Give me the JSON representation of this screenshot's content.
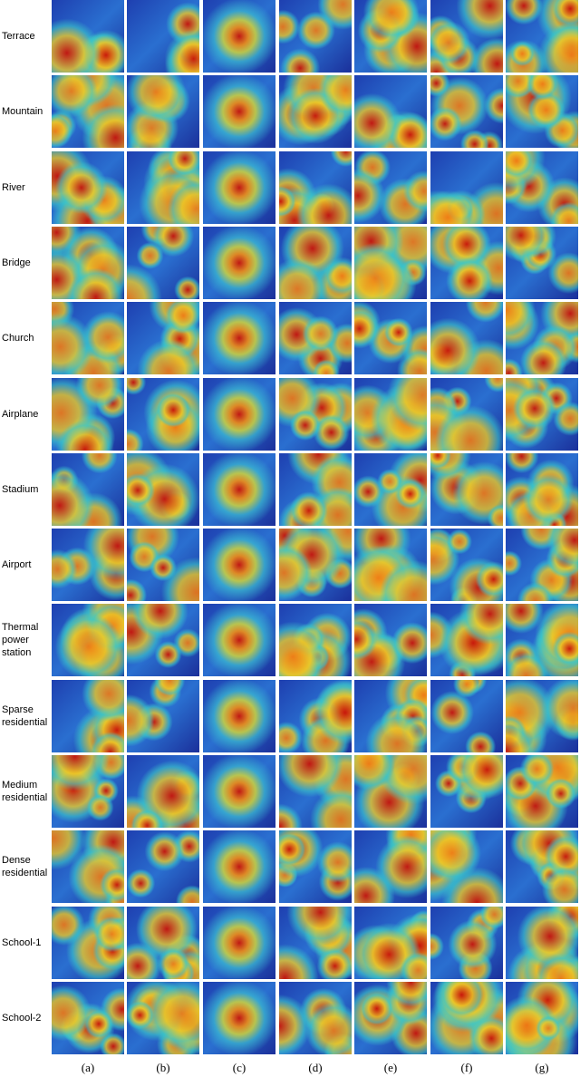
{
  "figure": {
    "rows": [
      {
        "label": "Terrace"
      },
      {
        "label": "Mountain"
      },
      {
        "label": "River"
      },
      {
        "label": "Bridge"
      },
      {
        "label": "Church"
      },
      {
        "label": "Airplane"
      },
      {
        "label": "Stadium"
      },
      {
        "label": "Airport"
      },
      {
        "label": "Thermal power station"
      },
      {
        "label": "Sparse residential"
      },
      {
        "label": "Medium residential"
      },
      {
        "label": "Dense residential"
      },
      {
        "label": "School-1"
      },
      {
        "label": "School-2"
      }
    ],
    "columns": [
      "(a)",
      "(b)",
      "(c)",
      "(d)",
      "(e)",
      "(f)",
      "(g)"
    ]
  }
}
